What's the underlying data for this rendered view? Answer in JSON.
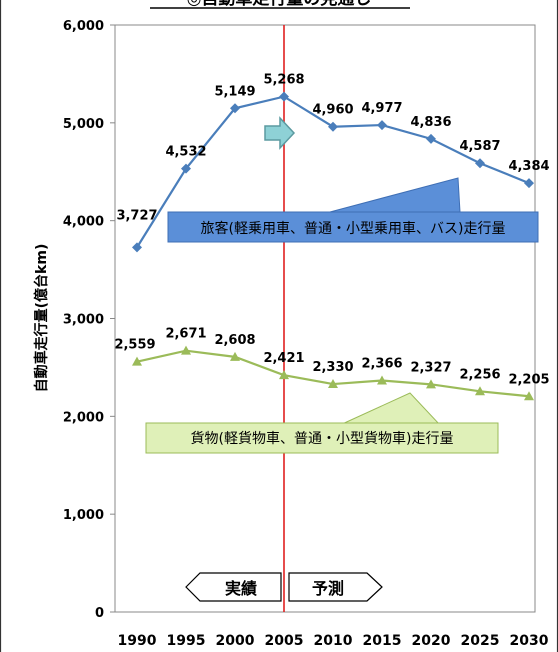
{
  "chart_data": {
    "type": "line",
    "title": "◎自動車走行量の見通し",
    "ylabel": "自動車走行量(億台km)",
    "xlabel": "",
    "ylim": [
      0,
      6000
    ],
    "yticks": [
      "0",
      "1,000",
      "2,000",
      "3,000",
      "4,000",
      "5,000",
      "6,000"
    ],
    "x": [
      "1990",
      "1995",
      "2000",
      "2005",
      "2010",
      "2015",
      "2020",
      "2025",
      "2030"
    ],
    "series": [
      {
        "name": "旅客(軽乗用車、普通・小型乗用車、バス)走行量",
        "color": "#4a7ebb",
        "marker": "diamond",
        "values": [
          3727,
          4532,
          5149,
          5268,
          4960,
          4977,
          4836,
          4587,
          4384
        ],
        "labels": [
          "3,727",
          "4,532",
          "5,149",
          "5,268",
          "4,960",
          "4,977",
          "4,836",
          "4,587",
          "4,384"
        ]
      },
      {
        "name": "貨物(軽貨物車、普通・小型貨物車)走行量",
        "color": "#9bbb59",
        "marker": "triangle",
        "values": [
          2559,
          2671,
          2608,
          2421,
          2330,
          2366,
          2327,
          2256,
          2205
        ],
        "labels": [
          "2,559",
          "2,671",
          "2,608",
          "2,421",
          "2,330",
          "2,366",
          "2,327",
          "2,256",
          "2,205"
        ]
      }
    ],
    "divider_year": "2005",
    "grid": false,
    "annotations": {
      "actual": "実績",
      "forecast": "予測"
    }
  }
}
